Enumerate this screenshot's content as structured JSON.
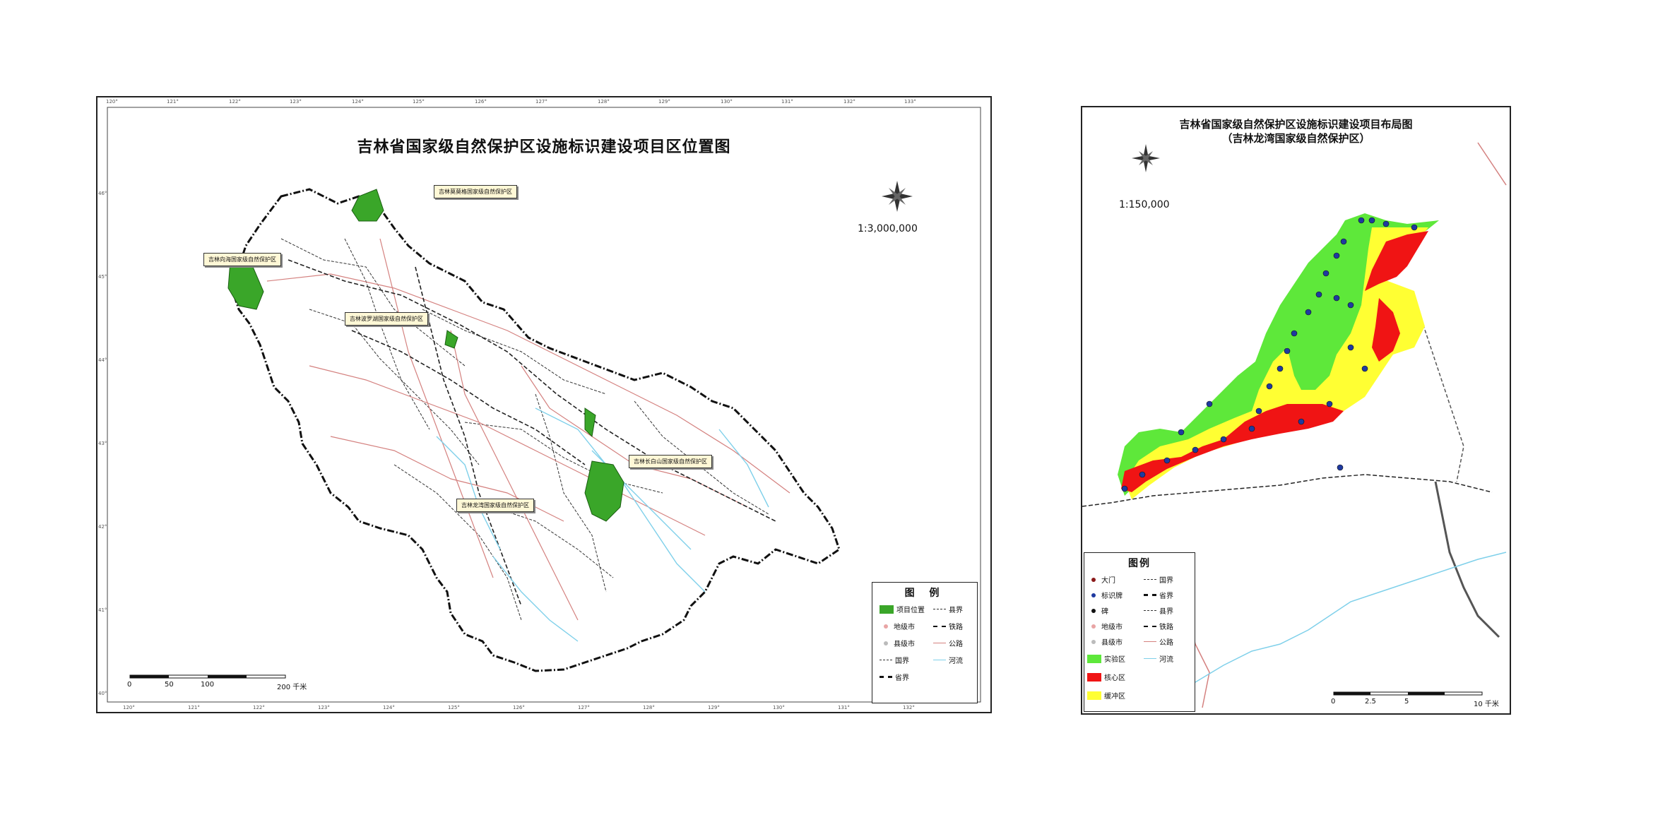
{
  "left_map": {
    "title": "吉林省国家级自然保护区设施标识建设项目区位置图",
    "scale": "1:3,000,000",
    "top_ticks": [
      "120°",
      "121°",
      "122°",
      "123°",
      "124°",
      "125°",
      "126°",
      "127°",
      "128°",
      "129°",
      "130°",
      "131°",
      "132°",
      "133°"
    ],
    "bottom_ticks": [
      "120°",
      "121°",
      "122°",
      "123°",
      "124°",
      "125°",
      "126°",
      "127°",
      "128°",
      "129°",
      "130°",
      "131°",
      "132°"
    ],
    "side_ticks": [
      "46°",
      "45°",
      "44°",
      "43°",
      "42°",
      "41°",
      "40°"
    ],
    "callouts": [
      "吉林莫莫格国家级自然保护区",
      "吉林向海国家级自然保护区",
      "吉林波罗湖国家级自然保护区",
      "吉林长白山国家级自然保护区",
      "吉林龙湾国家级自然保护区"
    ],
    "scalebar": {
      "labels": [
        "0",
        "50",
        "100",
        "200 千米"
      ]
    },
    "legend": {
      "title": "图 例",
      "items": [
        {
          "label": "项目位置",
          "color": "#3aa629"
        },
        {
          "label": "县界"
        },
        {
          "label": "地级市"
        },
        {
          "label": "铁路"
        },
        {
          "label": "县级市"
        },
        {
          "label": "公路"
        },
        {
          "label": "国界"
        },
        {
          "label": "河流"
        },
        {
          "label": "省界"
        }
      ]
    }
  },
  "right_map": {
    "title_line1": "吉林省国家级自然保护区设施标识建设项目布局图",
    "title_line2": "（吉林龙湾国家级自然保护区）",
    "scale": "1:150,000",
    "scalebar": {
      "labels": [
        "0",
        "2.5",
        "5",
        "10 千米"
      ]
    },
    "legend": {
      "title": "图例",
      "items": [
        {
          "label": "大门",
          "color": "#8b1a1a"
        },
        {
          "label": "国界"
        },
        {
          "label": "标识牌",
          "color": "#1f3aa0"
        },
        {
          "label": "省界"
        },
        {
          "label": "碑",
          "color": "#111111"
        },
        {
          "label": "县界"
        },
        {
          "label": "地级市"
        },
        {
          "label": "铁路"
        },
        {
          "label": "县级市"
        },
        {
          "label": "公路"
        },
        {
          "label": "实验区",
          "color": "#5ee83a"
        },
        {
          "label": "河流"
        },
        {
          "label": "核心区",
          "color": "#f01414"
        },
        {
          "label": "缓冲区",
          "color": "#ffff33"
        }
      ]
    }
  },
  "colors": {
    "province_fill": "#ffffff",
    "road": "#d4817f",
    "river": "#7fd0ea",
    "zone_green": "#5ee83a",
    "zone_red": "#f01414",
    "zone_yellow": "#ffff33",
    "site_green": "#3aa629"
  }
}
